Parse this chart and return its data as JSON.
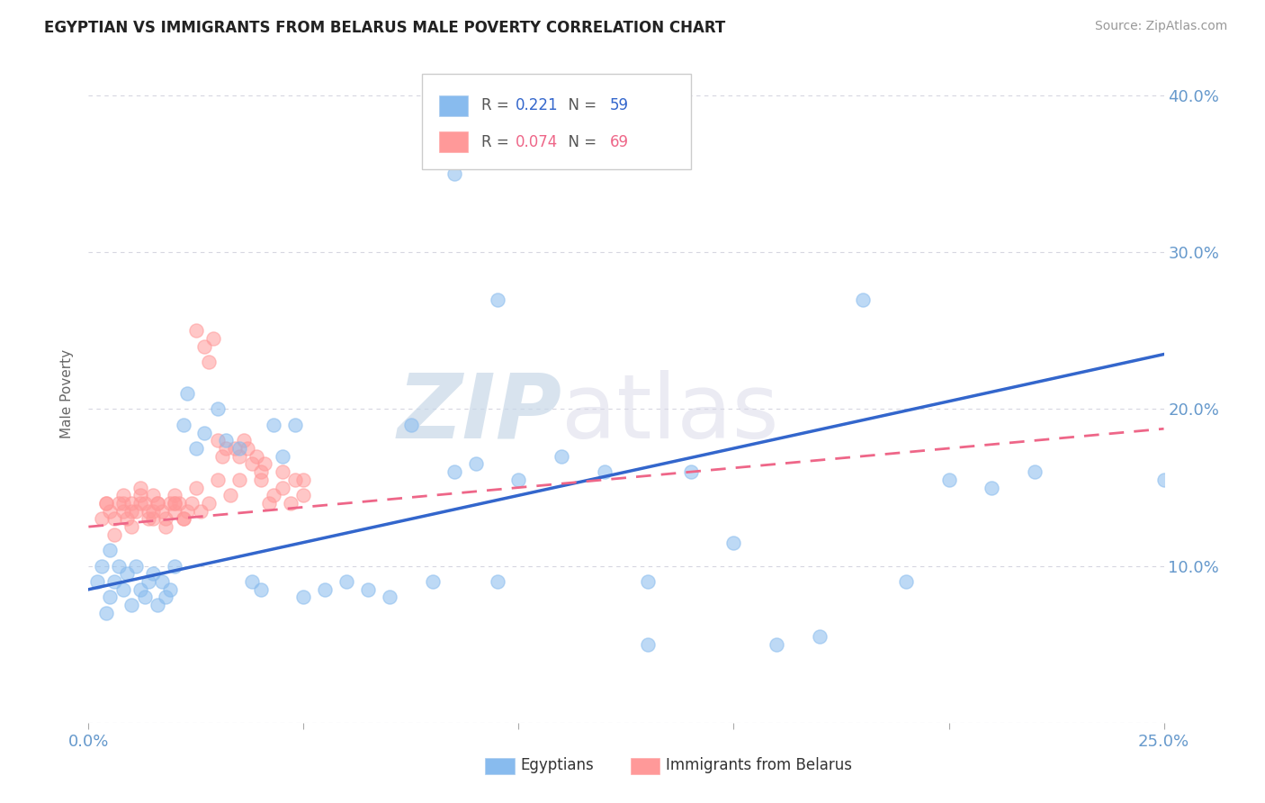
{
  "title": "EGYPTIAN VS IMMIGRANTS FROM BELARUS MALE POVERTY CORRELATION CHART",
  "source": "Source: ZipAtlas.com",
  "ylabel": "Male Poverty",
  "xlim": [
    0.0,
    0.25
  ],
  "ylim": [
    0.0,
    0.42
  ],
  "yticks": [
    0.0,
    0.1,
    0.2,
    0.3,
    0.4
  ],
  "ytick_labels": [
    "",
    "10.0%",
    "20.0%",
    "30.0%",
    "40.0%"
  ],
  "xticks": [
    0.0,
    0.05,
    0.1,
    0.15,
    0.2,
    0.25
  ],
  "xtick_labels": [
    "0.0%",
    "",
    "",
    "",
    "",
    "25.0%"
  ],
  "egyptians_R": 0.221,
  "egyptians_N": 59,
  "belarus_R": 0.074,
  "belarus_N": 69,
  "color_egyptians": "#88BBEE",
  "color_belarus": "#FF9999",
  "color_line_egyptians": "#3366CC",
  "color_line_belarus": "#EE6688",
  "color_axis_labels": "#6699CC",
  "eg_intercept": 0.085,
  "eg_slope": 0.6,
  "bl_intercept": 0.125,
  "bl_slope": 0.25,
  "egyptians_x": [
    0.002,
    0.003,
    0.004,
    0.005,
    0.005,
    0.006,
    0.007,
    0.008,
    0.009,
    0.01,
    0.011,
    0.012,
    0.013,
    0.014,
    0.015,
    0.016,
    0.017,
    0.018,
    0.019,
    0.02,
    0.022,
    0.023,
    0.025,
    0.027,
    0.03,
    0.032,
    0.035,
    0.038,
    0.04,
    0.043,
    0.045,
    0.048,
    0.05,
    0.055,
    0.06,
    0.065,
    0.07,
    0.075,
    0.08,
    0.085,
    0.09,
    0.095,
    0.1,
    0.11,
    0.12,
    0.13,
    0.14,
    0.15,
    0.16,
    0.17,
    0.18,
    0.19,
    0.2,
    0.21,
    0.22,
    0.085,
    0.095,
    0.13,
    0.25
  ],
  "egyptians_y": [
    0.09,
    0.1,
    0.07,
    0.11,
    0.08,
    0.09,
    0.1,
    0.085,
    0.095,
    0.075,
    0.1,
    0.085,
    0.08,
    0.09,
    0.095,
    0.075,
    0.09,
    0.08,
    0.085,
    0.1,
    0.19,
    0.21,
    0.175,
    0.185,
    0.2,
    0.18,
    0.175,
    0.09,
    0.085,
    0.19,
    0.17,
    0.19,
    0.08,
    0.085,
    0.09,
    0.085,
    0.08,
    0.19,
    0.09,
    0.16,
    0.165,
    0.09,
    0.155,
    0.17,
    0.16,
    0.05,
    0.16,
    0.115,
    0.05,
    0.055,
    0.27,
    0.09,
    0.155,
    0.15,
    0.16,
    0.35,
    0.27,
    0.09,
    0.155
  ],
  "belarus_x": [
    0.003,
    0.004,
    0.005,
    0.006,
    0.007,
    0.008,
    0.008,
    0.009,
    0.01,
    0.01,
    0.011,
    0.012,
    0.012,
    0.013,
    0.014,
    0.015,
    0.015,
    0.016,
    0.017,
    0.018,
    0.019,
    0.02,
    0.02,
    0.021,
    0.022,
    0.023,
    0.024,
    0.025,
    0.026,
    0.027,
    0.028,
    0.029,
    0.03,
    0.031,
    0.032,
    0.033,
    0.034,
    0.035,
    0.036,
    0.037,
    0.038,
    0.039,
    0.04,
    0.041,
    0.042,
    0.043,
    0.045,
    0.047,
    0.048,
    0.05,
    0.004,
    0.006,
    0.008,
    0.01,
    0.012,
    0.014,
    0.016,
    0.018,
    0.02,
    0.022,
    0.025,
    0.028,
    0.03,
    0.035,
    0.04,
    0.045,
    0.05,
    0.015,
    0.02
  ],
  "belarus_y": [
    0.13,
    0.14,
    0.135,
    0.12,
    0.14,
    0.135,
    0.14,
    0.13,
    0.125,
    0.14,
    0.135,
    0.145,
    0.14,
    0.14,
    0.13,
    0.145,
    0.13,
    0.14,
    0.135,
    0.125,
    0.14,
    0.135,
    0.145,
    0.14,
    0.13,
    0.135,
    0.14,
    0.25,
    0.135,
    0.24,
    0.23,
    0.245,
    0.18,
    0.17,
    0.175,
    0.145,
    0.175,
    0.17,
    0.18,
    0.175,
    0.165,
    0.17,
    0.155,
    0.165,
    0.14,
    0.145,
    0.15,
    0.14,
    0.155,
    0.145,
    0.14,
    0.13,
    0.145,
    0.135,
    0.15,
    0.135,
    0.14,
    0.13,
    0.14,
    0.13,
    0.15,
    0.14,
    0.155,
    0.155,
    0.16,
    0.16,
    0.155,
    0.135,
    0.14
  ]
}
